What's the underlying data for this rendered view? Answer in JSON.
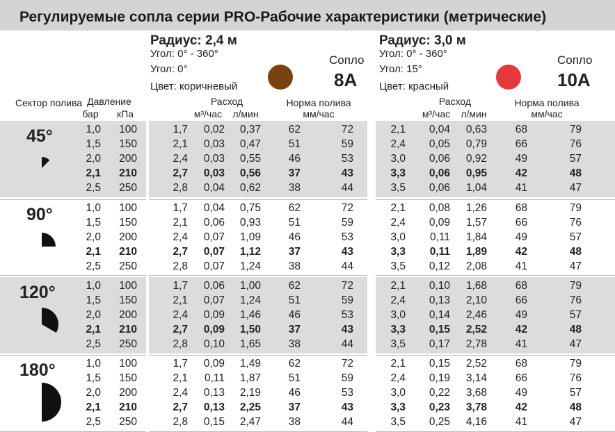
{
  "title": "Регулируемые сопла серии PRO-Рабочие характеристики (метрические)",
  "nozzle_a": {
    "radius": "Радиус: 2,4 м",
    "angle_range": "Угол: 0° - 360°",
    "angle": "Угол: 0°",
    "color": "Цвет: коричневый",
    "nozzle_label": "Сопло",
    "nozzle_number": "8А",
    "swatch_color": "#7a4210"
  },
  "nozzle_b": {
    "radius": "Радиус: 3,0 м",
    "angle_range": "Угол: 0° - 360°",
    "angle": "Угол: 15°",
    "color": "Цвет: красный",
    "nozzle_label": "Сопло",
    "nozzle_number": "10А",
    "swatch_color": "#e6383f"
  },
  "headers": {
    "sector": "Сектор полива",
    "pressure": "Давление",
    "bar": "бар",
    "kpa": "кПа",
    "flow": "Расход",
    "m3h": "м³/час",
    "lmin": "л/мин",
    "precip": "Норма полива",
    "mmh": "мм/час"
  },
  "sectors": [
    {
      "label": "45°",
      "angle": 45,
      "rows": [
        {
          "bar": "1,0",
          "kpa": "100",
          "a": [
            "1,7",
            "0,02",
            "0,37",
            "62",
            "72"
          ],
          "b": [
            "2,1",
            "0,04",
            "0,63",
            "68",
            "79"
          ],
          "bold": false
        },
        {
          "bar": "1,5",
          "kpa": "150",
          "a": [
            "2,1",
            "0,03",
            "0,47",
            "51",
            "59"
          ],
          "b": [
            "2,4",
            "0,05",
            "0,79",
            "66",
            "76"
          ],
          "bold": false
        },
        {
          "bar": "2,0",
          "kpa": "200",
          "a": [
            "2,4",
            "0,03",
            "0,55",
            "46",
            "53"
          ],
          "b": [
            "3,0",
            "0,06",
            "0,92",
            "49",
            "57"
          ],
          "bold": false
        },
        {
          "bar": "2,1",
          "kpa": "210",
          "a": [
            "2,7",
            "0,03",
            "0,56",
            "37",
            "43"
          ],
          "b": [
            "3,3",
            "0,06",
            "0,95",
            "42",
            "48"
          ],
          "bold": true
        },
        {
          "bar": "2,5",
          "kpa": "250",
          "a": [
            "2,8",
            "0,04",
            "0,62",
            "38",
            "44"
          ],
          "b": [
            "3,5",
            "0,06",
            "1,04",
            "41",
            "47"
          ],
          "bold": false
        }
      ]
    },
    {
      "label": "90°",
      "angle": 90,
      "rows": [
        {
          "bar": "1,0",
          "kpa": "100",
          "a": [
            "1,7",
            "0,04",
            "0,75",
            "62",
            "72"
          ],
          "b": [
            "2,1",
            "0,08",
            "1,26",
            "68",
            "79"
          ],
          "bold": false
        },
        {
          "bar": "1,5",
          "kpa": "150",
          "a": [
            "2,1",
            "0,06",
            "0,93",
            "51",
            "59"
          ],
          "b": [
            "2,4",
            "0,09",
            "1,57",
            "66",
            "76"
          ],
          "bold": false
        },
        {
          "bar": "2,0",
          "kpa": "200",
          "a": [
            "2,4",
            "0,07",
            "1,09",
            "46",
            "53"
          ],
          "b": [
            "3,0",
            "0,11",
            "1,84",
            "49",
            "57"
          ],
          "bold": false
        },
        {
          "bar": "2,1",
          "kpa": "210",
          "a": [
            "2,7",
            "0,07",
            "1,12",
            "37",
            "43"
          ],
          "b": [
            "3,3",
            "0,11",
            "1,89",
            "42",
            "48"
          ],
          "bold": true
        },
        {
          "bar": "2,5",
          "kpa": "250",
          "a": [
            "2,8",
            "0,07",
            "1,24",
            "38",
            "44"
          ],
          "b": [
            "3,5",
            "0,12",
            "2,08",
            "41",
            "47"
          ],
          "bold": false
        }
      ]
    },
    {
      "label": "120°",
      "angle": 120,
      "rows": [
        {
          "bar": "1,0",
          "kpa": "100",
          "a": [
            "1,7",
            "0,06",
            "1,00",
            "62",
            "72"
          ],
          "b": [
            "2,1",
            "0,10",
            "1,68",
            "68",
            "79"
          ],
          "bold": false
        },
        {
          "bar": "1,5",
          "kpa": "150",
          "a": [
            "2,1",
            "0,07",
            "1,24",
            "51",
            "59"
          ],
          "b": [
            "2,4",
            "0,13",
            "2,10",
            "66",
            "76"
          ],
          "bold": false
        },
        {
          "bar": "2,0",
          "kpa": "200",
          "a": [
            "2,4",
            "0,09",
            "1,46",
            "46",
            "53"
          ],
          "b": [
            "3,0",
            "0,14",
            "2,46",
            "49",
            "57"
          ],
          "bold": false
        },
        {
          "bar": "2,1",
          "kpa": "210",
          "a": [
            "2,7",
            "0,09",
            "1,50",
            "37",
            "43"
          ],
          "b": [
            "3,3",
            "0,15",
            "2,52",
            "42",
            "48"
          ],
          "bold": true
        },
        {
          "bar": "2,5",
          "kpa": "250",
          "a": [
            "2,8",
            "0,10",
            "1,65",
            "38",
            "44"
          ],
          "b": [
            "3,5",
            "0,17",
            "2,78",
            "41",
            "47"
          ],
          "bold": false
        }
      ]
    },
    {
      "label": "180°",
      "angle": 180,
      "rows": [
        {
          "bar": "1,0",
          "kpa": "100",
          "a": [
            "1,7",
            "0,09",
            "1,49",
            "62",
            "72"
          ],
          "b": [
            "2,1",
            "0,15",
            "2,52",
            "68",
            "79"
          ],
          "bold": false
        },
        {
          "bar": "1,5",
          "kpa": "150",
          "a": [
            "2,1",
            "0,11",
            "1,87",
            "51",
            "59"
          ],
          "b": [
            "2,4",
            "0,19",
            "3,14",
            "66",
            "76"
          ],
          "bold": false
        },
        {
          "bar": "2,0",
          "kpa": "200",
          "a": [
            "2,4",
            "0,13",
            "2,19",
            "46",
            "53"
          ],
          "b": [
            "3,0",
            "0,22",
            "3,68",
            "49",
            "57"
          ],
          "bold": false
        },
        {
          "bar": "2,1",
          "kpa": "210",
          "a": [
            "2,7",
            "0,13",
            "2,25",
            "37",
            "43"
          ],
          "b": [
            "3,3",
            "0,23",
            "3,78",
            "42",
            "48"
          ],
          "bold": true
        },
        {
          "bar": "2,5",
          "kpa": "250",
          "a": [
            "2,8",
            "0,15",
            "2,47",
            "38",
            "44"
          ],
          "b": [
            "3,5",
            "0,25",
            "4,16",
            "41",
            "47"
          ],
          "bold": false
        }
      ]
    }
  ]
}
